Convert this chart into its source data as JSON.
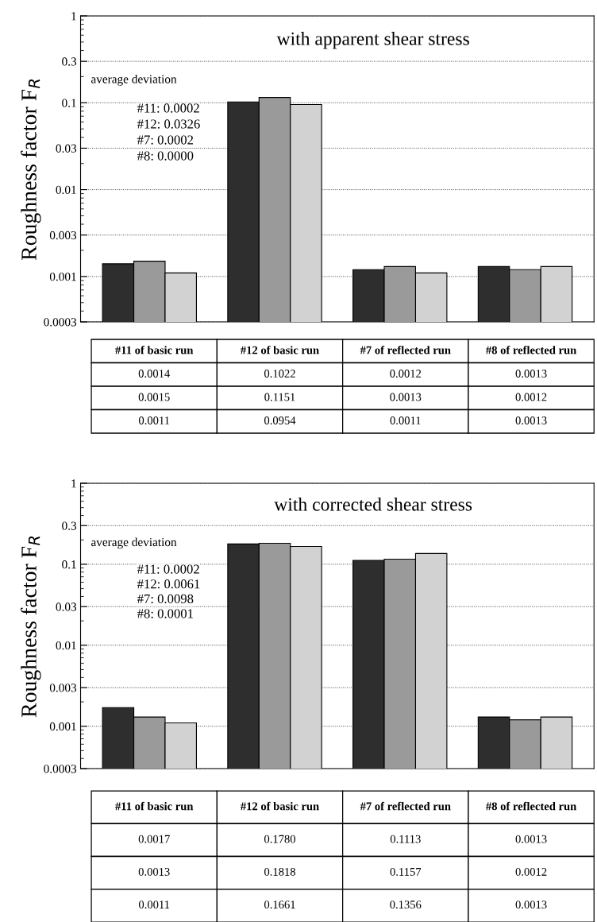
{
  "chart_data": [
    {
      "type": "bar",
      "title": "with apparent shear stress",
      "ylabel": "Roughness factor F$_{R}$",
      "log": "y",
      "grid": "y",
      "categories": [
        "#11 of basic run",
        "#12 of basic run",
        "#7 of reflected run",
        "#8 of reflected run"
      ],
      "series": [
        {
          "color": "#2e2e2e",
          "values": [
            0.0014,
            0.1022,
            0.0012,
            0.0013
          ],
          "value_labels": [
            "0.0014",
            "0.1022",
            "0.0012",
            "0.0013"
          ]
        },
        {
          "color": "#9a9a9a",
          "values": [
            0.0015,
            0.1151,
            0.0013,
            0.0012
          ],
          "value_labels": [
            "0.0015",
            "0.1151",
            "0.0013",
            "0.0012"
          ]
        },
        {
          "color": "#d2d2d2",
          "values": [
            0.0011,
            0.0954,
            0.0011,
            0.0013
          ],
          "value_labels": [
            "0.0011",
            "0.0954",
            "0.0011",
            "0.0013"
          ]
        }
      ],
      "ylim": [
        0.0003,
        1
      ],
      "yticks": [
        0.0003,
        0.001,
        0.003,
        0.01,
        0.03,
        0.1,
        0.3,
        1
      ],
      "annotations": [
        "average deviation",
        "#11: 0.0002",
        "#12: 0.0326",
        "#7: 0.0002",
        "#8: 0.0000"
      ]
    },
    {
      "type": "bar",
      "title": "with corrected shear stress",
      "ylabel": "Roughness factor F$_{R}$",
      "log": "y",
      "grid": "y",
      "categories": [
        "#11 of basic run",
        "#12 of basic run",
        "#7 of reflected run",
        "#8 of reflected run"
      ],
      "series": [
        {
          "color": "#2e2e2e",
          "values": [
            0.0017,
            0.178,
            0.1113,
            0.0013
          ],
          "value_labels": [
            "0.0017",
            "0.1780",
            "0.1113",
            "0.0013"
          ]
        },
        {
          "color": "#9a9a9a",
          "values": [
            0.0013,
            0.1818,
            0.1157,
            0.0012
          ],
          "value_labels": [
            "0.0013",
            "0.1818",
            "0.1157",
            "0.0012"
          ]
        },
        {
          "color": "#d2d2d2",
          "values": [
            0.0011,
            0.1661,
            0.1356,
            0.0013
          ],
          "value_labels": [
            "0.0011",
            "0.1661",
            "0.1356",
            "0.0013"
          ]
        }
      ],
      "ylim": [
        0.0003,
        1
      ],
      "yticks": [
        0.0003,
        0.001,
        0.003,
        0.01,
        0.03,
        0.1,
        0.3,
        1
      ],
      "annotations": [
        "average deviation",
        "#11: 0.0002",
        "#12: 0.0061",
        "#7: 0.0098",
        "#8: 0.0001"
      ]
    }
  ]
}
